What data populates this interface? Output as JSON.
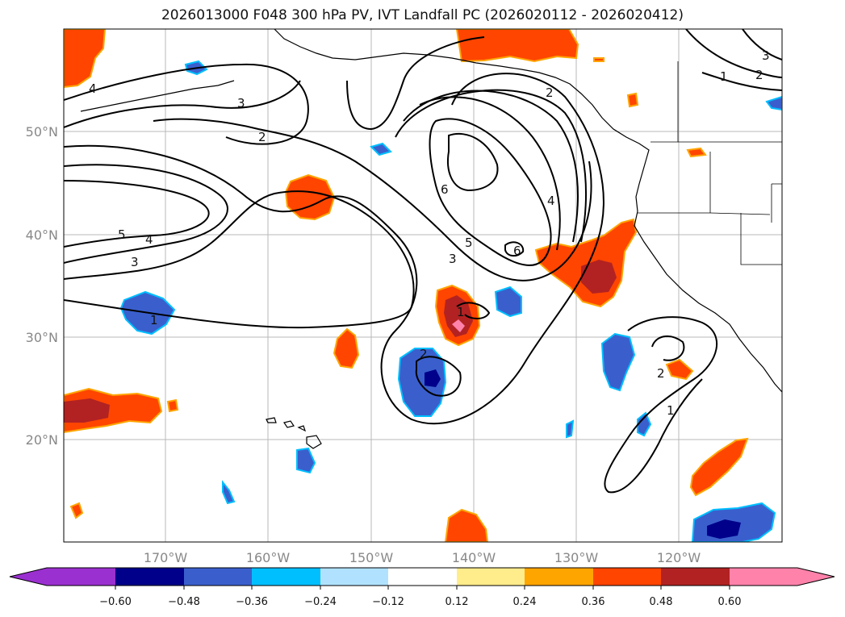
{
  "title": "2026013000 F048 300 hPa PV, IVT Landfall PC (2026020112 - 2026020412)",
  "axes": {
    "lat_ticks": [
      "50°N",
      "40°N",
      "30°N",
      "20°N"
    ],
    "lon_ticks": [
      "170°W",
      "160°W",
      "150°W",
      "140°W",
      "130°W",
      "120°W"
    ]
  },
  "contour_labels": [
    "4",
    "3",
    "2",
    "5",
    "4",
    "3",
    "1",
    "6",
    "5",
    "6",
    "3",
    "4",
    "1",
    "2",
    "3",
    "2",
    "1",
    "1",
    "2",
    "2"
  ],
  "colorbar": {
    "levels": [
      "−0.60",
      "−0.48",
      "−0.36",
      "−0.24",
      "−0.12",
      "0.12",
      "0.24",
      "0.36",
      "0.48",
      "0.60"
    ],
    "colors": [
      "#9b30d0",
      "#00008b",
      "#3a5fcd",
      "#00bfff",
      "#b0e2ff",
      "#ffffff",
      "#ffec8b",
      "#ffa500",
      "#ff4500",
      "#b22222",
      "#ff82ab"
    ]
  },
  "colors": {
    "neg_low": "#3a5fcd",
    "neg_high": "#00008b",
    "neg_edge": "#00bfff",
    "pos_low": "#ff4500",
    "pos_mid": "#b22222",
    "pos_high": "#ff82ab",
    "pos_edge": "#ffa500",
    "grid": "#b8b8b8"
  }
}
